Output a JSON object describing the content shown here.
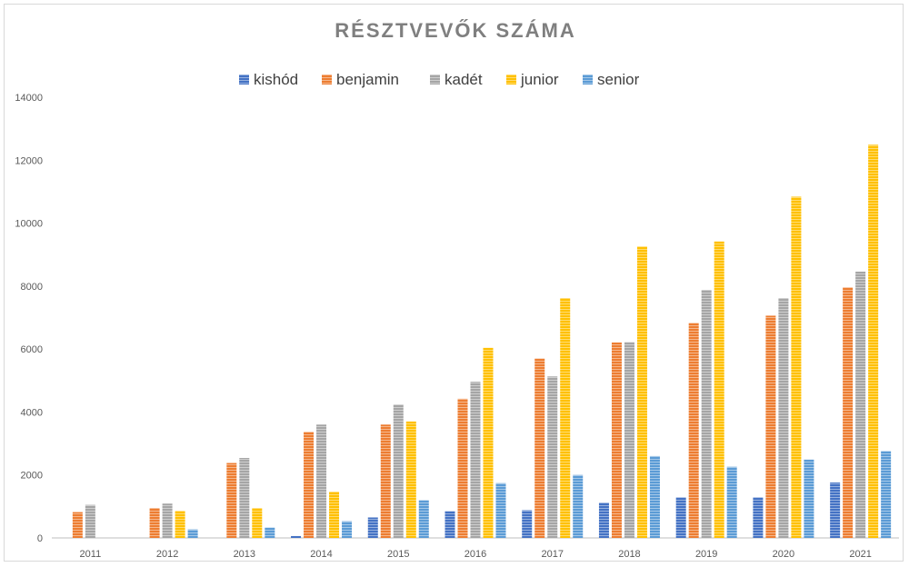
{
  "chart_data": {
    "type": "bar",
    "title": "RÉSZTVEVŐK SZÁMA",
    "categories": [
      "2011",
      "2012",
      "2013",
      "2014",
      "2015",
      "2016",
      "2017",
      "2018",
      "2019",
      "2020",
      "2021"
    ],
    "series": [
      {
        "name": "kishód",
        "color": "#4472c4",
        "values": [
          0,
          0,
          0,
          60,
          650,
          850,
          880,
          1120,
          1290,
          1290,
          1760
        ]
      },
      {
        "name": "benjamin",
        "color": "#ed7d31",
        "values": [
          820,
          950,
          2380,
          3370,
          3600,
          4420,
          5700,
          6210,
          6830,
          7060,
          7960
        ]
      },
      {
        "name": "kadét",
        "color": "#a5a5a5",
        "values": [
          1050,
          1090,
          2540,
          3600,
          4240,
          4960,
          5130,
          6220,
          7880,
          7620,
          8460
        ]
      },
      {
        "name": "junior",
        "color": "#ffc000",
        "values": [
          0,
          860,
          950,
          1470,
          3700,
          6040,
          7620,
          9260,
          9420,
          10840,
          12490
        ]
      },
      {
        "name": "senior",
        "color": "#5b9bd5",
        "values": [
          0,
          270,
          330,
          530,
          1200,
          1740,
          2000,
          2600,
          2260,
          2490,
          2760
        ]
      }
    ],
    "ylim": [
      0,
      14000
    ],
    "yticks": [
      "0",
      "2000",
      "4000",
      "6000",
      "8000",
      "10000",
      "12000",
      "14000"
    ],
    "xlabel": "",
    "ylabel": "",
    "grid": false,
    "legend_position": "top"
  }
}
